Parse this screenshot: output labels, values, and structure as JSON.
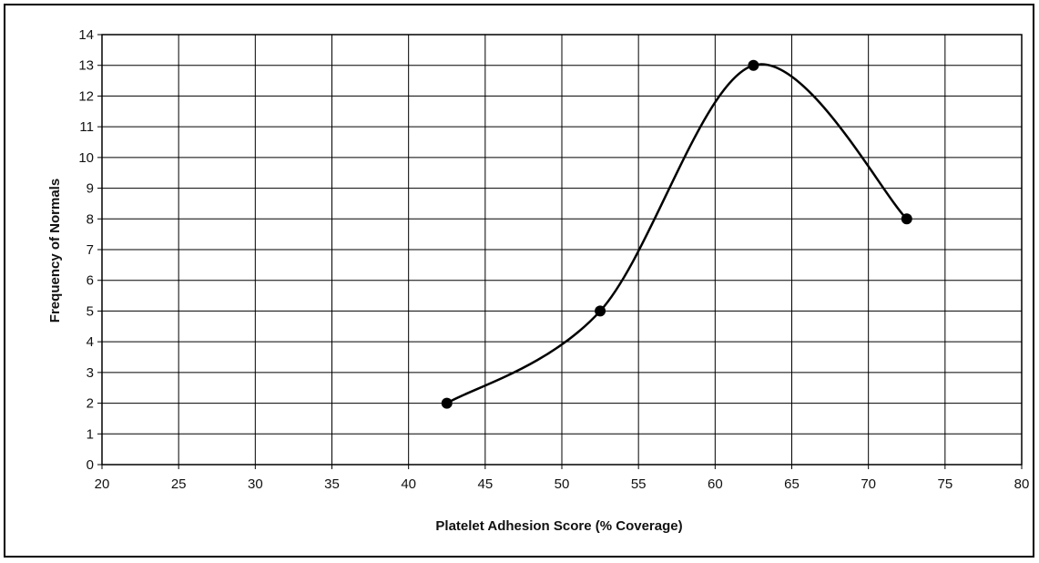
{
  "chart_data": {
    "type": "line",
    "smooth": true,
    "markers": "circle",
    "x": [
      42.5,
      52.5,
      62.5,
      72.5
    ],
    "y": [
      2,
      5,
      13,
      8
    ],
    "xlabel": "Platelet Adhesion Score (% Coverage)",
    "ylabel": "Frequency of Normals",
    "xlim": [
      20,
      80
    ],
    "ylim": [
      0,
      14
    ],
    "xticks": [
      20,
      25,
      30,
      35,
      40,
      45,
      50,
      55,
      60,
      65,
      70,
      75,
      80
    ],
    "yticks": [
      0,
      1,
      2,
      3,
      4,
      5,
      6,
      7,
      8,
      9,
      10,
      11,
      12,
      13,
      14
    ],
    "grid": true,
    "legend": "none",
    "colors": {
      "line": "#000000",
      "grid": "#000000",
      "background": "#ffffff"
    }
  }
}
